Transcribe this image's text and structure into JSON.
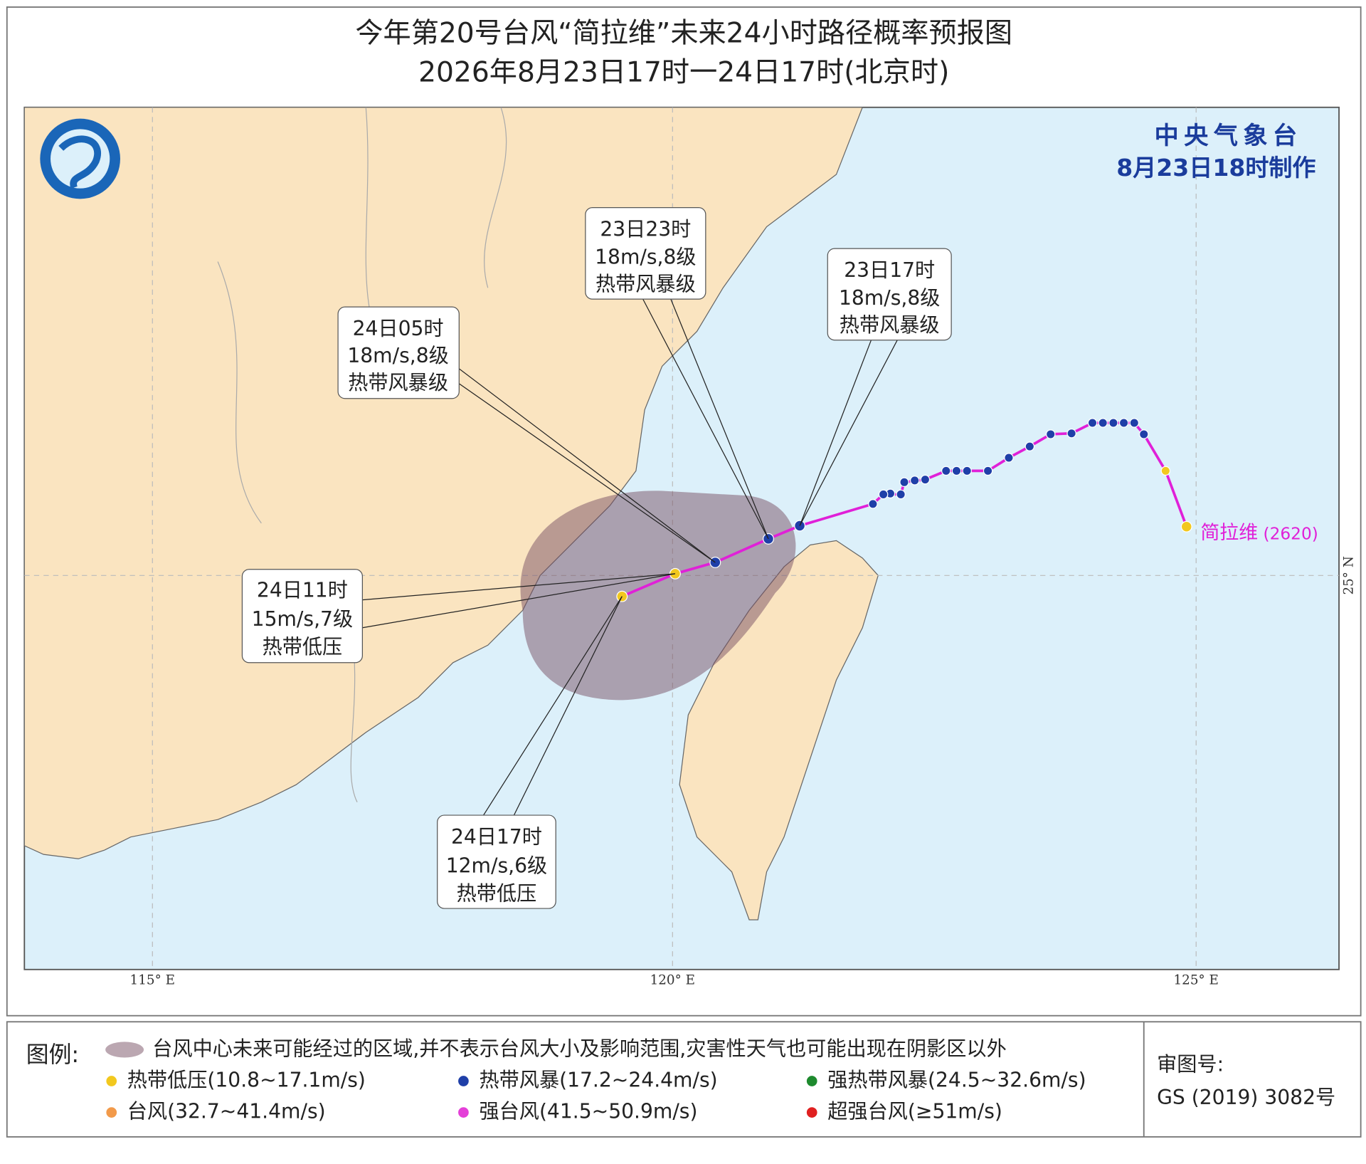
{
  "header": {
    "title": "今年第20号台风“简拉维”未来24小时路径概率预报图",
    "subtitle": "2026年8月23日17时一24日17时(北京时)"
  },
  "agency": {
    "name": "中央气象台",
    "issued": "8月23日18时制作"
  },
  "typhoon_label": {
    "name": "简拉维",
    "code": "(2620)"
  },
  "axis_labels": {
    "lon_115": "115° E",
    "lon_120": "120° E",
    "lon_125": "125° E",
    "lat_25": "25° N"
  },
  "callouts": [
    {
      "time": "23日17时",
      "wind": "18m/s,8级",
      "grade": "热带风暴级"
    },
    {
      "time": "23日23时",
      "wind": "18m/s,8级",
      "grade": "热带风暴级"
    },
    {
      "time": "24日05时",
      "wind": "18m/s,8级",
      "grade": "热带风暴级"
    },
    {
      "time": "24日11时",
      "wind": "15m/s,7级",
      "grade": "热带低压"
    },
    {
      "time": "24日17时",
      "wind": "12m/s,6级",
      "grade": "热带低压"
    }
  ],
  "legend": {
    "title": "图例:",
    "shade": "台风中心未来可能经过的区域,并不表示台风大小及影响范围,灾害性天气也可能出现在阴影区以外",
    "items": [
      {
        "label": "热带低压(10.8~17.1m/s)",
        "color": "#f2c81e"
      },
      {
        "label": "热带风暴(17.2~24.4m/s)",
        "color": "#1f3fa8"
      },
      {
        "label": "强热带风暴(24.5~32.6m/s)",
        "color": "#1e8a2e"
      },
      {
        "label": "台风(32.7~41.4m/s)",
        "color": "#f29a4a"
      },
      {
        "label": "强台风(41.5~50.9m/s)",
        "color": "#e43fd8"
      },
      {
        "label": "超强台风(≥51m/s)",
        "color": "#e02020"
      }
    ]
  },
  "approval": {
    "label": "审图号:",
    "number": "GS (2019) 3082号"
  }
}
